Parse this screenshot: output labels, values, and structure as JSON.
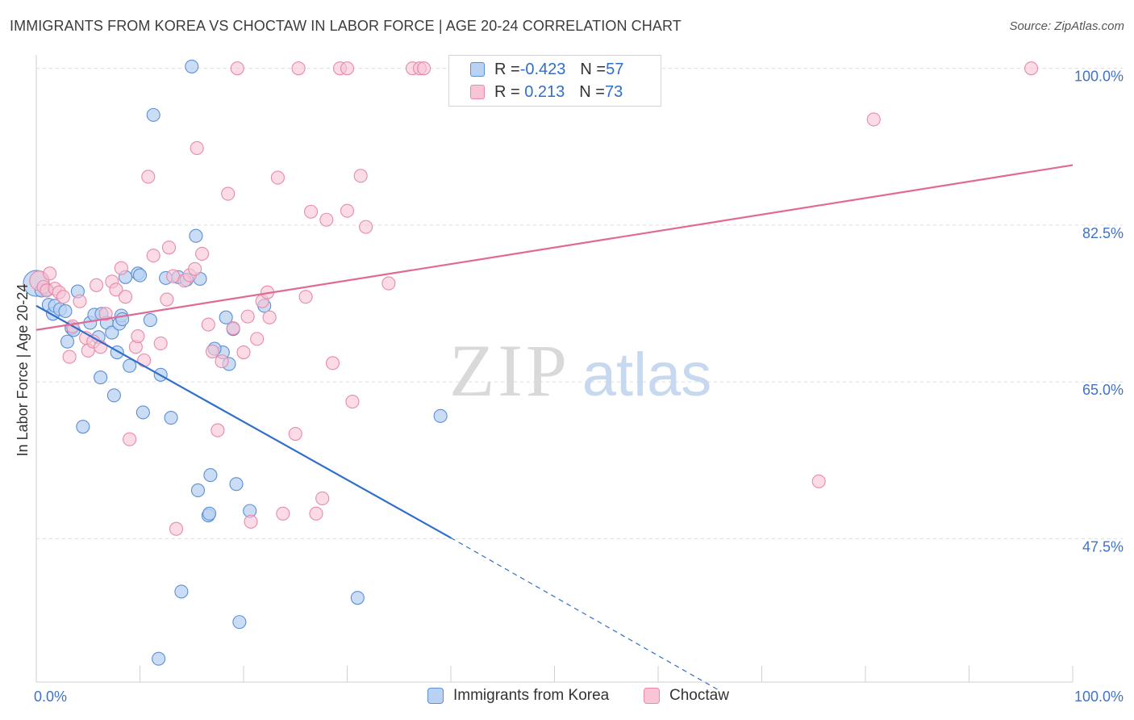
{
  "title": "IMMIGRANTS FROM KOREA VS CHOCTAW IN LABOR FORCE | AGE 20-24 CORRELATION CHART",
  "source": "Source: ZipAtlas.com",
  "watermark": {
    "zip": "ZIP",
    "atlas": "atlas"
  },
  "legend": {
    "rows": [
      {
        "r_label": "R = ",
        "r_value": "-0.423",
        "n_label": "N = ",
        "n_value": "57"
      },
      {
        "r_label": "R = ",
        "r_value": " 0.213",
        "n_label": "N = ",
        "n_value": "73"
      }
    ]
  },
  "colors": {
    "blue_fill": "#b9d1f2",
    "blue_stroke": "#5b8fd6",
    "blue_line": "#2f6fca",
    "pink_fill": "#f8c4d6",
    "pink_stroke": "#e88aa8",
    "pink_line": "#e06a93",
    "axis_text": "#3f72c8"
  },
  "chart_data": {
    "type": "scatter",
    "title": "IMMIGRANTS FROM KOREA VS CHOCTAW IN LABOR FORCE | AGE 20-24 CORRELATION CHART",
    "xlabel": "",
    "ylabel": "In Labor Force | Age 20-24",
    "xlim": [
      0,
      100
    ],
    "ylim": [
      31.5,
      101.5
    ],
    "x_tick_labels": [
      "0.0%",
      "100.0%"
    ],
    "y_ticks": [
      47.5,
      65.0,
      82.5,
      100.0
    ],
    "y_tick_labels": [
      "47.5%",
      "65.0%",
      "82.5%",
      "100.0%"
    ],
    "grid": true,
    "legend_position": "top-center",
    "series": [
      {
        "name": "Immigrants from Korea",
        "color": "#5b8fd6",
        "trend": {
          "x": [
            0,
            40,
            66
          ],
          "y": [
            73.5,
            47.6,
            30.5
          ],
          "solid_until": 40
        },
        "points": [
          [
            0.0,
            76.0
          ],
          [
            0.5,
            75.2
          ],
          [
            1.0,
            75.3
          ],
          [
            1.2,
            73.6
          ],
          [
            1.6,
            72.6
          ],
          [
            1.8,
            73.5
          ],
          [
            2.3,
            73.1
          ],
          [
            2.8,
            72.9
          ],
          [
            3.0,
            69.5
          ],
          [
            3.4,
            71.0
          ],
          [
            3.6,
            70.8
          ],
          [
            4.0,
            75.1
          ],
          [
            4.5,
            60.0
          ],
          [
            5.2,
            71.6
          ],
          [
            5.6,
            72.5
          ],
          [
            6.0,
            70.0
          ],
          [
            6.3,
            72.6
          ],
          [
            6.2,
            65.5
          ],
          [
            6.8,
            71.6
          ],
          [
            7.3,
            70.5
          ],
          [
            7.5,
            63.5
          ],
          [
            7.8,
            68.3
          ],
          [
            8.0,
            71.5
          ],
          [
            8.2,
            72.4
          ],
          [
            8.6,
            76.7
          ],
          [
            9.0,
            66.8
          ],
          [
            9.8,
            77.1
          ],
          [
            10.0,
            76.9
          ],
          [
            10.3,
            61.6
          ],
          [
            11.0,
            71.9
          ],
          [
            11.3,
            94.8
          ],
          [
            12.0,
            65.8
          ],
          [
            12.5,
            76.6
          ],
          [
            13.0,
            61.0
          ],
          [
            13.7,
            76.7
          ],
          [
            14.0,
            41.6
          ],
          [
            14.5,
            76.4
          ],
          [
            15.0,
            100.2
          ],
          [
            15.4,
            81.3
          ],
          [
            15.6,
            52.9
          ],
          [
            15.8,
            76.5
          ],
          [
            16.6,
            50.1
          ],
          [
            16.7,
            50.3
          ],
          [
            16.8,
            54.6
          ],
          [
            18.0,
            68.3
          ],
          [
            18.3,
            72.2
          ],
          [
            18.6,
            67.0
          ],
          [
            19.0,
            70.9
          ],
          [
            19.3,
            53.6
          ],
          [
            19.6,
            38.2
          ],
          [
            20.6,
            50.6
          ],
          [
            11.8,
            34.1
          ],
          [
            31.0,
            40.9
          ],
          [
            39.0,
            61.2
          ],
          [
            22.0,
            73.5
          ],
          [
            17.2,
            68.7
          ],
          [
            8.3,
            72.0
          ]
        ]
      },
      {
        "name": "Choctaw",
        "color": "#e88aa8",
        "trend": {
          "x": [
            0,
            100
          ],
          "y": [
            70.8,
            89.2
          ]
        },
        "points": [
          [
            0.3,
            76.3
          ],
          [
            0.7,
            75.6
          ],
          [
            1.0,
            75.2
          ],
          [
            1.3,
            77.1
          ],
          [
            1.8,
            75.4
          ],
          [
            2.2,
            75.0
          ],
          [
            2.6,
            74.5
          ],
          [
            3.2,
            67.8
          ],
          [
            3.5,
            71.2
          ],
          [
            4.2,
            74.0
          ],
          [
            4.8,
            69.9
          ],
          [
            5.0,
            68.5
          ],
          [
            5.5,
            69.5
          ],
          [
            5.8,
            75.8
          ],
          [
            6.2,
            68.9
          ],
          [
            6.7,
            72.6
          ],
          [
            7.3,
            76.2
          ],
          [
            7.7,
            75.3
          ],
          [
            8.2,
            77.7
          ],
          [
            8.6,
            74.5
          ],
          [
            9.0,
            58.6
          ],
          [
            9.6,
            68.9
          ],
          [
            9.8,
            70.1
          ],
          [
            10.4,
            67.4
          ],
          [
            10.8,
            87.9
          ],
          [
            11.3,
            79.1
          ],
          [
            12.0,
            69.3
          ],
          [
            12.6,
            74.2
          ],
          [
            12.8,
            80.0
          ],
          [
            13.2,
            76.8
          ],
          [
            13.5,
            48.6
          ],
          [
            14.3,
            76.3
          ],
          [
            14.8,
            76.9
          ],
          [
            15.3,
            77.6
          ],
          [
            15.5,
            91.1
          ],
          [
            16.0,
            79.3
          ],
          [
            16.6,
            71.4
          ],
          [
            17.0,
            68.4
          ],
          [
            17.5,
            59.6
          ],
          [
            17.9,
            67.3
          ],
          [
            18.5,
            86.0
          ],
          [
            19.0,
            71.0
          ],
          [
            19.4,
            100.0
          ],
          [
            20.0,
            68.3
          ],
          [
            20.4,
            72.3
          ],
          [
            20.7,
            49.4
          ],
          [
            21.3,
            69.8
          ],
          [
            21.8,
            74.0
          ],
          [
            22.3,
            75.0
          ],
          [
            22.5,
            72.2
          ],
          [
            23.3,
            87.8
          ],
          [
            23.8,
            50.3
          ],
          [
            25.0,
            59.2
          ],
          [
            25.3,
            100.0
          ],
          [
            26.0,
            74.5
          ],
          [
            26.5,
            84.0
          ],
          [
            27.0,
            50.3
          ],
          [
            27.6,
            52.0
          ],
          [
            28.0,
            83.1
          ],
          [
            28.6,
            67.1
          ],
          [
            29.3,
            100.0
          ],
          [
            30.0,
            84.1
          ],
          [
            30.5,
            62.8
          ],
          [
            31.3,
            88.0
          ],
          [
            31.8,
            82.3
          ],
          [
            34.0,
            76.0
          ],
          [
            36.3,
            100.0
          ],
          [
            37.0,
            100.0
          ],
          [
            37.4,
            100.0
          ],
          [
            30.0,
            100.0
          ],
          [
            75.5,
            53.9
          ],
          [
            80.8,
            94.3
          ],
          [
            96.0,
            100.0
          ]
        ]
      }
    ]
  },
  "bottom_legend": [
    {
      "label": "Immigrants from Korea"
    },
    {
      "label": "Choctaw"
    }
  ]
}
